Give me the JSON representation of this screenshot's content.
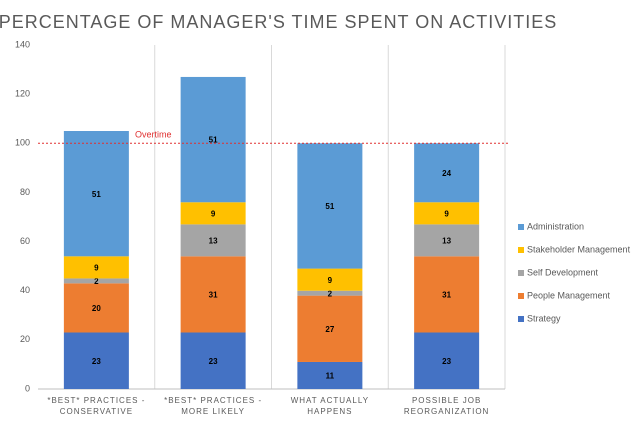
{
  "chart_data": {
    "type": "stacked_bar",
    "title": "PERCENTAGE OF MANAGER'S TIME SPENT ON ACTIVITIES",
    "categories": [
      "*BEST* PRACTICES - CONSERVATIVE",
      "*BEST* PRACTICES - MORE LIKELY",
      "WHAT ACTUALLY HAPPENS",
      "POSSIBLE JOB REORGANIZATION"
    ],
    "series": [
      {
        "name": "Strategy",
        "color": "#4472c4",
        "values": [
          23,
          23,
          11,
          23
        ]
      },
      {
        "name": "People Management",
        "color": "#ed7d31",
        "values": [
          20,
          31,
          27,
          31
        ]
      },
      {
        "name": "Self Development",
        "color": "#a5a5a5",
        "values": [
          2,
          13,
          2,
          13
        ]
      },
      {
        "name": "Stakeholder Management",
        "color": "#ffc000",
        "values": [
          9,
          9,
          9,
          9
        ]
      },
      {
        "name": "Administration",
        "color": "#5b9bd5",
        "values": [
          51,
          51,
          51,
          24
        ]
      }
    ],
    "ylim": [
      0,
      140
    ],
    "yticks": [
      0,
      20,
      40,
      60,
      80,
      100,
      120,
      140
    ],
    "grid": false,
    "legend": "right",
    "annotation": {
      "text": "Overtime",
      "value": 100,
      "color": "#e03030"
    }
  }
}
